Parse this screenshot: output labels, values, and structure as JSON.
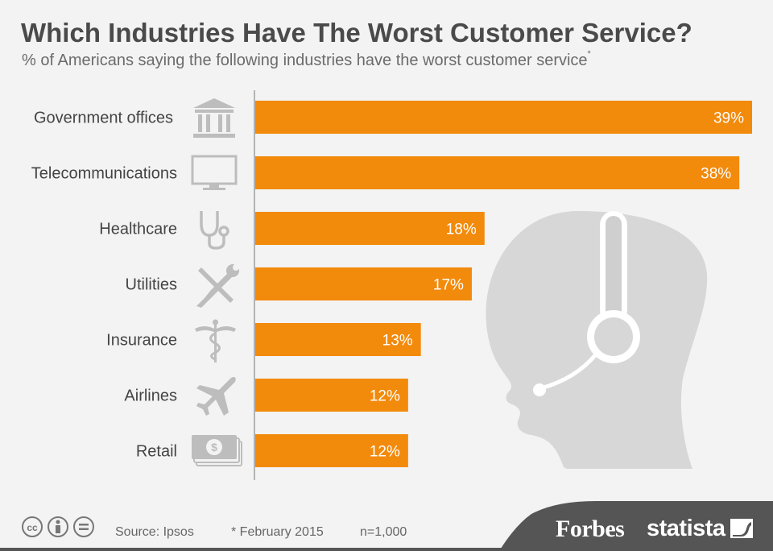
{
  "title": "Which Industries Have The Worst Customer Service?",
  "subtitle": "% of Americans saying the following industries have the worst customer service",
  "subtitle_note_marker": "*",
  "chart_data": {
    "type": "bar",
    "orientation": "horizontal",
    "title": "Which Industries Have The Worst Customer Service?",
    "subtitle": "% of Americans saying the following industries have the worst customer service",
    "categories": [
      "Government offices",
      "Telecommunications",
      "Healthcare",
      "Utilities",
      "Insurance",
      "Airlines",
      "Retail"
    ],
    "values": [
      39,
      38,
      18,
      17,
      13,
      12,
      12
    ],
    "value_labels": [
      "39%",
      "38%",
      "18%",
      "17%",
      "13%",
      "12%",
      "12%"
    ],
    "icons": [
      "government-building-icon",
      "monitor-icon",
      "stethoscope-icon",
      "tools-icon",
      "caduceus-icon",
      "airplane-icon",
      "money-icon"
    ],
    "unit": "%",
    "xlim": [
      0,
      39
    ],
    "bar_color": "#f28a0c",
    "grid": false
  },
  "footer": {
    "source": "Source: Ipsos",
    "note": "* February 2015",
    "sample": "n=1,000",
    "brand_forbes": "Forbes",
    "brand_statista": "statista"
  },
  "colors": {
    "background": "#f3f3f3",
    "bar": "#f28a0c",
    "icon": "#bdbdbd",
    "title": "#4a4a4a",
    "footer_band": "#555555"
  }
}
